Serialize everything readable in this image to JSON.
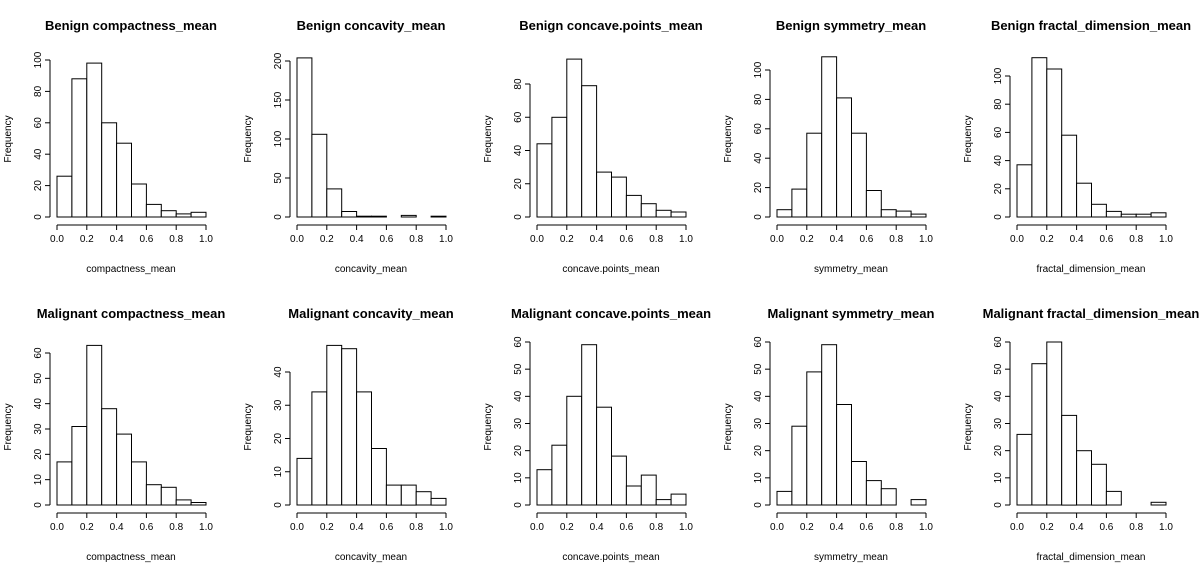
{
  "chart_data": [
    {
      "type": "bar",
      "title": "Benign compactness_mean",
      "xlabel": "compactness_mean",
      "ylabel": "Frequency",
      "bin_edges": [
        0,
        0.1,
        0.2,
        0.3,
        0.4,
        0.5,
        0.6,
        0.7,
        0.8,
        0.9,
        1.0
      ],
      "values": [
        26,
        88,
        98,
        60,
        47,
        21,
        8,
        4,
        2,
        3
      ],
      "ylim": [
        0,
        100
      ],
      "yticks": [
        0,
        20,
        40,
        60,
        80,
        100
      ],
      "xticks": [
        0,
        0.2,
        0.4,
        0.6,
        0.8,
        1.0
      ],
      "xtick_labels": [
        "0.0",
        "0.2",
        "0.4",
        "0.6",
        "0.8",
        "1.0"
      ]
    },
    {
      "type": "bar",
      "title": "Benign concavity_mean",
      "xlabel": "concavity_mean",
      "ylabel": "Frequency",
      "bin_edges": [
        0,
        0.1,
        0.2,
        0.3,
        0.4,
        0.5,
        0.6,
        0.7,
        0.8,
        0.9,
        1.0
      ],
      "values": [
        204,
        106,
        36,
        7,
        1,
        1,
        0,
        2,
        0,
        1
      ],
      "ylim": [
        0,
        200
      ],
      "yticks": [
        0,
        50,
        100,
        150,
        200
      ],
      "xticks": [
        0,
        0.2,
        0.4,
        0.6,
        0.8,
        1.0
      ],
      "xtick_labels": [
        "0.0",
        "0.2",
        "0.4",
        "0.6",
        "0.8",
        "1.0"
      ]
    },
    {
      "type": "bar",
      "title": "Benign concave.points_mean",
      "xlabel": "concave.points_mean",
      "ylabel": "Frequency",
      "bin_edges": [
        0,
        0.1,
        0.2,
        0.3,
        0.4,
        0.5,
        0.6,
        0.7,
        0.8,
        0.9,
        1.0
      ],
      "values": [
        44,
        60,
        95,
        79,
        27,
        24,
        13,
        8,
        4,
        3
      ],
      "ylim": [
        0,
        80
      ],
      "yticks": [
        0,
        20,
        40,
        60,
        80
      ],
      "xticks": [
        0,
        0.2,
        0.4,
        0.6,
        0.8,
        1.0
      ],
      "xtick_labels": [
        "0.0",
        "0.2",
        "0.4",
        "0.6",
        "0.8",
        "1.0"
      ]
    },
    {
      "type": "bar",
      "title": "Benign symmetry_mean",
      "xlabel": "symmetry_mean",
      "ylabel": "Frequency",
      "bin_edges": [
        0,
        0.1,
        0.2,
        0.3,
        0.4,
        0.5,
        0.6,
        0.7,
        0.8,
        0.9,
        1.0
      ],
      "values": [
        5,
        19,
        57,
        109,
        81,
        57,
        18,
        5,
        4,
        2
      ],
      "ylim": [
        0,
        100
      ],
      "yticks": [
        0,
        20,
        40,
        60,
        80,
        100
      ],
      "xticks": [
        0,
        0.2,
        0.4,
        0.6,
        0.8,
        1.0
      ],
      "xtick_labels": [
        "0.0",
        "0.2",
        "0.4",
        "0.6",
        "0.8",
        "1.0"
      ]
    },
    {
      "type": "bar",
      "title": "Benign fractal_dimension_mean",
      "xlabel": "fractal_dimension_mean",
      "ylabel": "Frequency",
      "bin_edges": [
        0,
        0.1,
        0.2,
        0.3,
        0.4,
        0.5,
        0.6,
        0.7,
        0.8,
        0.9,
        1.0
      ],
      "values": [
        37,
        113,
        105,
        58,
        24,
        9,
        4,
        2,
        2,
        3
      ],
      "ylim": [
        0,
        100
      ],
      "yticks": [
        0,
        20,
        40,
        60,
        80,
        100
      ],
      "xticks": [
        0,
        0.2,
        0.4,
        0.6,
        0.8,
        1.0
      ],
      "xtick_labels": [
        "0.0",
        "0.2",
        "0.4",
        "0.6",
        "0.8",
        "1.0"
      ]
    },
    {
      "type": "bar",
      "title": "Malignant compactness_mean",
      "xlabel": "compactness_mean",
      "ylabel": "Frequency",
      "bin_edges": [
        0,
        0.1,
        0.2,
        0.3,
        0.4,
        0.5,
        0.6,
        0.7,
        0.8,
        0.9,
        1.0
      ],
      "values": [
        17,
        31,
        63,
        38,
        28,
        17,
        8,
        7,
        2,
        1
      ],
      "ylim": [
        0,
        60
      ],
      "yticks": [
        0,
        10,
        20,
        30,
        40,
        50,
        60
      ],
      "xticks": [
        0,
        0.2,
        0.4,
        0.6,
        0.8,
        1.0
      ],
      "xtick_labels": [
        "0.0",
        "0.2",
        "0.4",
        "0.6",
        "0.8",
        "1.0"
      ]
    },
    {
      "type": "bar",
      "title": "Malignant concavity_mean",
      "xlabel": "concavity_mean",
      "ylabel": "Frequency",
      "bin_edges": [
        0,
        0.1,
        0.2,
        0.3,
        0.4,
        0.5,
        0.6,
        0.7,
        0.8,
        0.9,
        1.0
      ],
      "values": [
        14,
        34,
        48,
        47,
        34,
        17,
        6,
        6,
        4,
        2
      ],
      "ylim": [
        0,
        40
      ],
      "yticks": [
        0,
        10,
        20,
        30,
        40
      ],
      "xticks": [
        0,
        0.2,
        0.4,
        0.6,
        0.8,
        1.0
      ],
      "xtick_labels": [
        "0.0",
        "0.2",
        "0.4",
        "0.6",
        "0.8",
        "1.0"
      ]
    },
    {
      "type": "bar",
      "title": "Malignant concave.points_mean",
      "xlabel": "concave.points_mean",
      "ylabel": "Frequency",
      "bin_edges": [
        0,
        0.1,
        0.2,
        0.3,
        0.4,
        0.5,
        0.6,
        0.7,
        0.8,
        0.9,
        1.0
      ],
      "values": [
        13,
        22,
        40,
        59,
        36,
        18,
        7,
        11,
        2,
        4
      ],
      "ylim": [
        0,
        60
      ],
      "yticks": [
        0,
        10,
        20,
        30,
        40,
        50,
        60
      ],
      "xticks": [
        0,
        0.2,
        0.4,
        0.6,
        0.8,
        1.0
      ],
      "xtick_labels": [
        "0.0",
        "0.2",
        "0.4",
        "0.6",
        "0.8",
        "1.0"
      ]
    },
    {
      "type": "bar",
      "title": "Malignant symmetry_mean",
      "xlabel": "symmetry_mean",
      "ylabel": "Frequency",
      "bin_edges": [
        0,
        0.1,
        0.2,
        0.3,
        0.4,
        0.5,
        0.6,
        0.7,
        0.8,
        0.9,
        1.0
      ],
      "values": [
        5,
        29,
        49,
        59,
        37,
        16,
        9,
        6,
        0,
        2
      ],
      "ylim": [
        0,
        60
      ],
      "yticks": [
        0,
        10,
        20,
        30,
        40,
        50,
        60
      ],
      "xticks": [
        0,
        0.2,
        0.4,
        0.6,
        0.8,
        1.0
      ],
      "xtick_labels": [
        "0.0",
        "0.2",
        "0.4",
        "0.6",
        "0.8",
        "1.0"
      ]
    },
    {
      "type": "bar",
      "title": "Malignant fractal_dimension_mean",
      "xlabel": "fractal_dimension_mean",
      "ylabel": "Frequency",
      "bin_edges": [
        0,
        0.1,
        0.2,
        0.3,
        0.4,
        0.5,
        0.6,
        0.7,
        0.8,
        0.9,
        1.0
      ],
      "values": [
        26,
        52,
        60,
        33,
        20,
        15,
        5,
        0,
        0,
        1
      ],
      "ylim": [
        0,
        60
      ],
      "yticks": [
        0,
        10,
        20,
        30,
        40,
        50,
        60
      ],
      "xticks": [
        0,
        0.2,
        0.4,
        0.6,
        0.8,
        1.0
      ],
      "xtick_labels": [
        "0.0",
        "0.2",
        "0.4",
        "0.6",
        "0.8",
        "1.0"
      ]
    }
  ]
}
